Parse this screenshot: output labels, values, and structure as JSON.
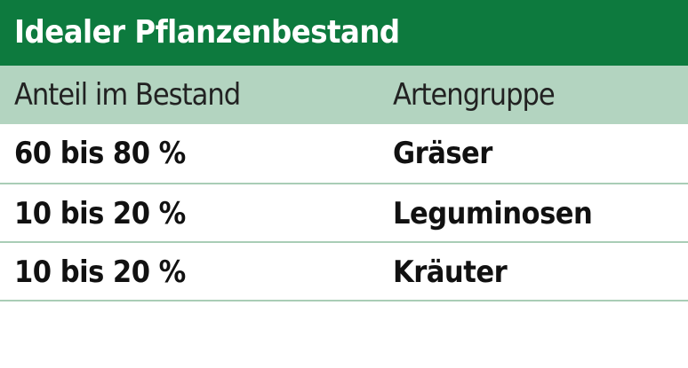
{
  "header": {
    "title": "Idealer Pflanzenbestand"
  },
  "table": {
    "columns": [
      "Anteil im Bestand",
      "Artengruppe"
    ],
    "rows": [
      [
        "60 bis 80 %",
        "Gräser"
      ],
      [
        "10 bis 20 %",
        "Leguminosen"
      ],
      [
        "10 bis 20 %",
        "Kräuter"
      ]
    ]
  }
}
